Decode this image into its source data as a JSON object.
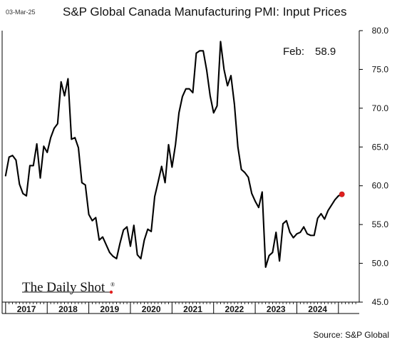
{
  "header": {
    "date_stamp": "03-Mar-25",
    "title": "S&P Global Canada Manufacturing PMI: Input Prices",
    "source": "Source: S&P Global"
  },
  "watermark": {
    "text": "The Daily Shot",
    "mark": "®"
  },
  "chart_data": {
    "type": "line",
    "title": "S&P Global Canada Manufacturing PMI: Input Prices",
    "xlabel": "",
    "ylabel": "",
    "ylim": [
      45,
      80
    ],
    "yticks": [
      45,
      50,
      55,
      60,
      65,
      70,
      75,
      80
    ],
    "ytick_labels": [
      "45.0",
      "50.0",
      "55.0",
      "60.0",
      "65.0",
      "70.0",
      "75.0",
      "80.0"
    ],
    "y_axis_side": "right",
    "grid": false,
    "xlim": [
      "2016-12",
      "2025-07"
    ],
    "x_tick_labels": [
      "2017",
      "2018",
      "2019",
      "2020",
      "2021",
      "2022",
      "2023",
      "2024"
    ],
    "line_color": "#000000",
    "marker_color": "#e0201f",
    "annotation": {
      "label": "Feb:",
      "value": "58.9"
    },
    "series": [
      {
        "x": [
          "2017-01",
          "2017-02",
          "2017-03",
          "2017-04",
          "2017-05",
          "2017-06",
          "2017-07",
          "2017-08",
          "2017-09",
          "2017-10",
          "2017-11",
          "2017-12",
          "2018-01",
          "2018-02",
          "2018-03",
          "2018-04",
          "2018-05",
          "2018-06",
          "2018-07",
          "2018-08",
          "2018-09",
          "2018-10",
          "2018-11",
          "2018-12",
          "2019-01",
          "2019-02",
          "2019-03",
          "2019-04",
          "2019-05",
          "2019-06",
          "2019-07",
          "2019-08",
          "2019-09",
          "2019-10",
          "2019-11",
          "2019-12",
          "2020-01",
          "2020-02",
          "2020-03",
          "2020-04",
          "2020-05",
          "2020-06",
          "2020-07",
          "2020-08",
          "2020-09",
          "2020-10",
          "2020-11",
          "2020-12",
          "2021-01",
          "2021-02",
          "2021-03",
          "2021-04",
          "2021-05",
          "2021-06",
          "2021-07",
          "2021-08",
          "2021-09",
          "2021-10",
          "2021-11",
          "2021-12",
          "2022-01",
          "2022-02",
          "2022-03",
          "2022-04",
          "2022-05",
          "2022-06",
          "2022-07",
          "2022-08",
          "2022-09",
          "2022-10",
          "2022-11",
          "2022-12",
          "2023-01",
          "2023-02",
          "2023-03",
          "2023-04",
          "2023-05",
          "2023-06",
          "2023-07",
          "2023-08",
          "2023-09",
          "2023-10",
          "2023-11",
          "2023-12",
          "2024-01",
          "2024-02",
          "2024-03",
          "2024-04",
          "2024-05",
          "2024-06",
          "2024-07",
          "2024-08",
          "2024-09",
          "2024-10",
          "2024-11",
          "2024-12",
          "2025-01",
          "2025-02"
        ],
        "values": [
          61.3,
          63.7,
          63.9,
          63.3,
          60.2,
          59.0,
          58.7,
          62.6,
          62.6,
          65.4,
          61.0,
          65.1,
          64.3,
          66.2,
          67.4,
          68.0,
          73.4,
          71.6,
          73.8,
          66.0,
          66.2,
          64.9,
          60.4,
          60.1,
          56.3,
          55.5,
          55.9,
          53.0,
          53.4,
          52.4,
          51.4,
          50.9,
          50.6,
          52.6,
          54.3,
          54.7,
          52.2,
          54.9,
          51.1,
          50.6,
          53.0,
          54.4,
          54.1,
          58.6,
          60.5,
          62.5,
          60.4,
          65.3,
          62.4,
          65.3,
          69.4,
          71.5,
          72.5,
          72.5,
          72.0,
          77.1,
          77.4,
          77.4,
          74.9,
          71.6,
          69.4,
          70.3,
          78.6,
          75.0,
          72.9,
          74.2,
          70.5,
          65.0,
          62.1,
          61.7,
          61.1,
          59.0,
          58.0,
          57.2,
          59.2,
          49.5,
          51.0,
          51.4,
          54.0,
          50.3,
          55.1,
          55.5,
          54.0,
          53.3,
          53.8,
          54.0,
          54.7,
          53.8,
          53.6,
          53.6,
          55.8,
          56.4,
          55.7,
          56.8,
          57.5,
          58.2,
          58.7,
          58.9
        ]
      }
    ]
  }
}
